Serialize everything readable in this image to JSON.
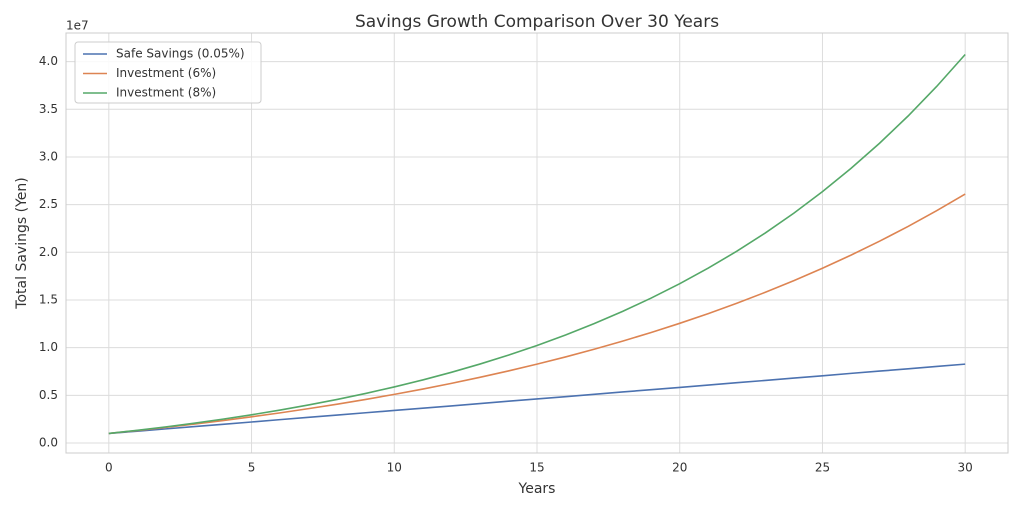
{
  "chart_data": {
    "type": "line",
    "title": "Savings Growth Comparison Over 30 Years",
    "xlabel": "Years",
    "ylabel": "Total Savings (Yen)",
    "y_offset_label": "1e7",
    "x": [
      0,
      1,
      2,
      3,
      4,
      5,
      6,
      7,
      8,
      9,
      10,
      11,
      12,
      13,
      14,
      15,
      16,
      17,
      18,
      19,
      20,
      21,
      22,
      23,
      24,
      25,
      26,
      27,
      28,
      29,
      30
    ],
    "series": [
      {
        "name": "Safe Savings (0.05%)",
        "color": "#4c72b0",
        "values": [
          1000000,
          1240000,
          1480000,
          1720000,
          1960000,
          2200000,
          2450000,
          2690000,
          2930000,
          3170000,
          3410000,
          3650000,
          3890000,
          4140000,
          4380000,
          4620000,
          4860000,
          5110000,
          5350000,
          5590000,
          5830000,
          6080000,
          6320000,
          6560000,
          6810000,
          7050000,
          7300000,
          7540000,
          7780000,
          8030000,
          8270000
        ]
      },
      {
        "name": "Investment (6%)",
        "color": "#dd8452",
        "values": [
          1000000,
          1308000,
          1636000,
          1983000,
          2352000,
          2744000,
          3160000,
          3602000,
          4071000,
          4568000,
          5097000,
          5658000,
          6254000,
          6886000,
          7558000,
          8270000,
          9027000,
          9831000,
          10684000,
          11589000,
          12551000,
          13572000,
          14656000,
          15806000,
          17028000,
          18325000,
          19702000,
          21163000,
          22715000,
          24363000,
          26113000
        ]
      },
      {
        "name": "Investment (8%)",
        "color": "#55a868",
        "values": [
          1000000,
          1332000,
          1692000,
          2081000,
          2503000,
          2959000,
          3454000,
          3990000,
          4570000,
          5198000,
          5879000,
          6615000,
          7414000,
          8278000,
          9214000,
          10228000,
          11326000,
          12515000,
          13802000,
          15197000,
          16707000,
          18343000,
          20114000,
          22033000,
          24111000,
          26361000,
          28798000,
          31437000,
          34295000,
          37390000,
          40743000
        ]
      }
    ],
    "xlim": [
      -1.5,
      31.5
    ],
    "xticks": [
      0,
      5,
      10,
      15,
      20,
      25,
      30
    ],
    "ylim": [
      -1050000,
      43000000
    ],
    "yticks": [
      {
        "value": 0,
        "label": "0.0"
      },
      {
        "value": 5000000,
        "label": "0.5"
      },
      {
        "value": 10000000,
        "label": "1.0"
      },
      {
        "value": 15000000,
        "label": "1.5"
      },
      {
        "value": 20000000,
        "label": "2.0"
      },
      {
        "value": 25000000,
        "label": "2.5"
      },
      {
        "value": 30000000,
        "label": "3.0"
      },
      {
        "value": 35000000,
        "label": "3.5"
      },
      {
        "value": 40000000,
        "label": "4.0"
      }
    ],
    "grid": true,
    "legend": "upper left"
  }
}
